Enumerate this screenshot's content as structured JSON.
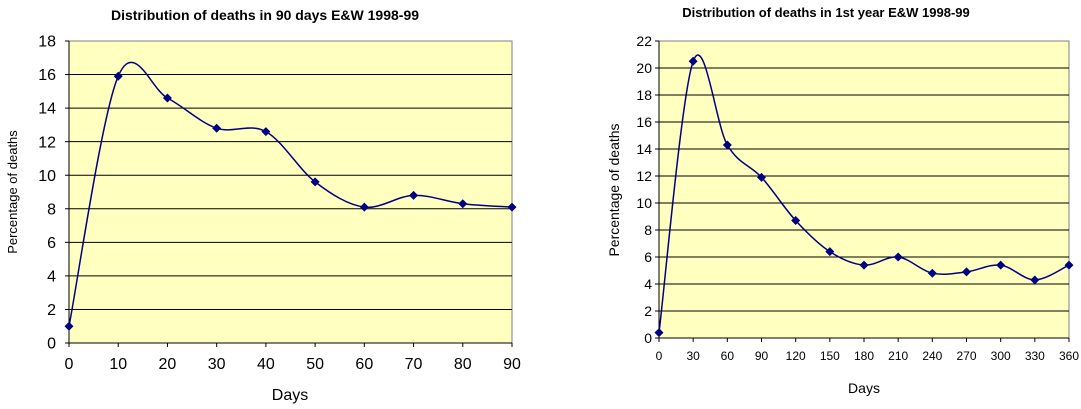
{
  "chart_data": [
    {
      "type": "line",
      "title": "Distribution of deaths in 90 days E&W 1998-99",
      "xlabel": "Days",
      "ylabel": "Percentage of deaths",
      "xlim": [
        0,
        90
      ],
      "ylim": [
        0,
        18
      ],
      "x_ticks": [
        0,
        10,
        20,
        30,
        40,
        50,
        60,
        70,
        80,
        90
      ],
      "y_ticks": [
        0,
        2,
        4,
        6,
        8,
        10,
        12,
        14,
        16,
        18
      ],
      "grid": "horizontal",
      "legend": "none",
      "plot_background": "#ffffc0",
      "line_color": "#000080",
      "x": [
        0,
        10,
        20,
        30,
        40,
        50,
        60,
        70,
        80,
        90
      ],
      "y": [
        1.0,
        15.9,
        14.6,
        12.8,
        12.6,
        9.6,
        8.1,
        8.8,
        8.3,
        8.1
      ]
    },
    {
      "type": "line",
      "title": "Distribution of deaths in 1st year E&W 1998-99",
      "xlabel": "Days",
      "ylabel": "Percentage of deaths",
      "xlim": [
        0,
        360
      ],
      "ylim": [
        0,
        22
      ],
      "x_ticks": [
        0,
        30,
        60,
        90,
        120,
        150,
        180,
        210,
        240,
        270,
        300,
        330,
        360
      ],
      "y_ticks": [
        0,
        2,
        4,
        6,
        8,
        10,
        12,
        14,
        16,
        18,
        20,
        22
      ],
      "grid": "horizontal",
      "legend": "none",
      "plot_background": "#ffffc0",
      "line_color": "#000080",
      "x": [
        0,
        30,
        60,
        90,
        120,
        150,
        180,
        210,
        240,
        270,
        300,
        330,
        360
      ],
      "y": [
        0.4,
        20.5,
        14.3,
        11.9,
        8.7,
        6.4,
        5.4,
        6.0,
        4.8,
        4.9,
        5.4,
        4.3,
        5.4
      ]
    }
  ]
}
